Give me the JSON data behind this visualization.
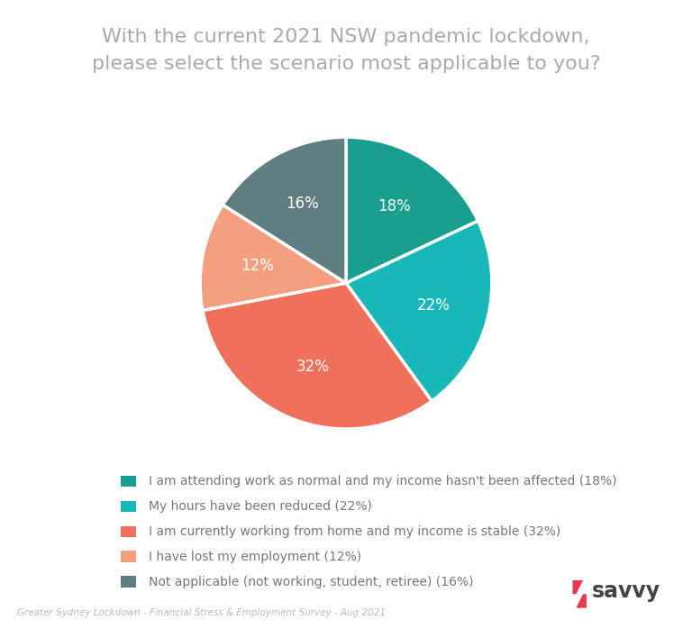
{
  "title": "With the current 2021 NSW pandemic lockdown,\nplease select the scenario most applicable to you?",
  "slices": [
    18,
    22,
    32,
    12,
    16
  ],
  "colors": [
    "#1a9e8f",
    "#19b8b8",
    "#f0705a",
    "#f4a080",
    "#5e7e82"
  ],
  "labels_pct": [
    "18%",
    "22%",
    "32%",
    "12%",
    "16%"
  ],
  "legend_labels": [
    "I am attending work as normal and my income hasn't been affected (18%)",
    "My hours have been reduced (22%)",
    "I am currently working from home and my income is stable (32%)",
    "I have lost my employment (12%)",
    "Not applicable (not working, student, retiree) (16%)"
  ],
  "legend_colors": [
    "#1a9e8f",
    "#19b8b8",
    "#f0705a",
    "#f4a080",
    "#5e7e82"
  ],
  "footnote": "Greater Sydney Lockdown - Financial Stress & Employment Survey - Aug 2021",
  "background_color": "#ffffff",
  "title_color": "#aaaaaa",
  "label_color": "#ffffff",
  "legend_color": "#777777",
  "footnote_color": "#bbbbbb",
  "start_angle": 90,
  "title_fontsize": 16,
  "label_fontsize": 12,
  "legend_fontsize": 10,
  "footnote_fontsize": 7.5
}
